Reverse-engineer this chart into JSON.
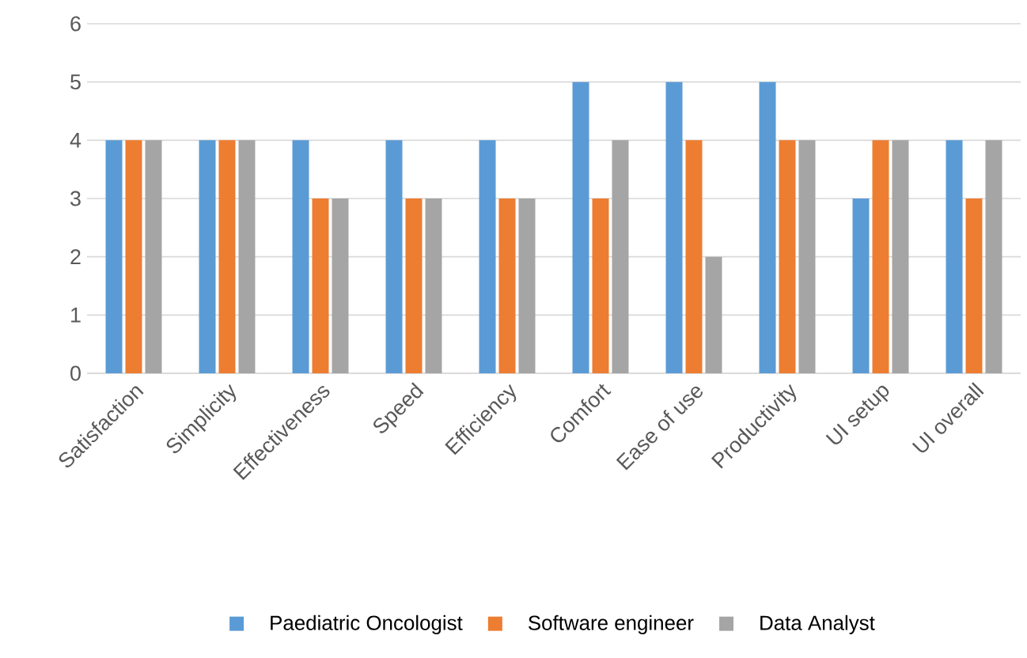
{
  "chart_data": {
    "type": "bar",
    "categories": [
      "Satisfaction",
      "Simplicity",
      "Effectiveness",
      "Speed",
      "Efficiency",
      "Comfort",
      "Ease of use",
      "Productivity",
      "UI setup",
      "UI overall"
    ],
    "series": [
      {
        "name": "Paediatric Oncologist",
        "color": "#5b9bd5",
        "values": [
          4,
          4,
          4,
          4,
          4,
          5,
          5,
          5,
          3,
          4
        ]
      },
      {
        "name": "Software engineer",
        "color": "#ed7d31",
        "values": [
          4,
          4,
          3,
          3,
          3,
          3,
          4,
          4,
          4,
          3
        ]
      },
      {
        "name": "Data Analyst",
        "color": "#a5a5a5",
        "values": [
          4,
          4,
          3,
          3,
          3,
          4,
          2,
          4,
          4,
          4
        ]
      }
    ],
    "ylim": [
      0,
      6
    ],
    "yticks": [
      0,
      1,
      2,
      3,
      4,
      5,
      6
    ],
    "grid": "y",
    "legend": "bottom"
  }
}
